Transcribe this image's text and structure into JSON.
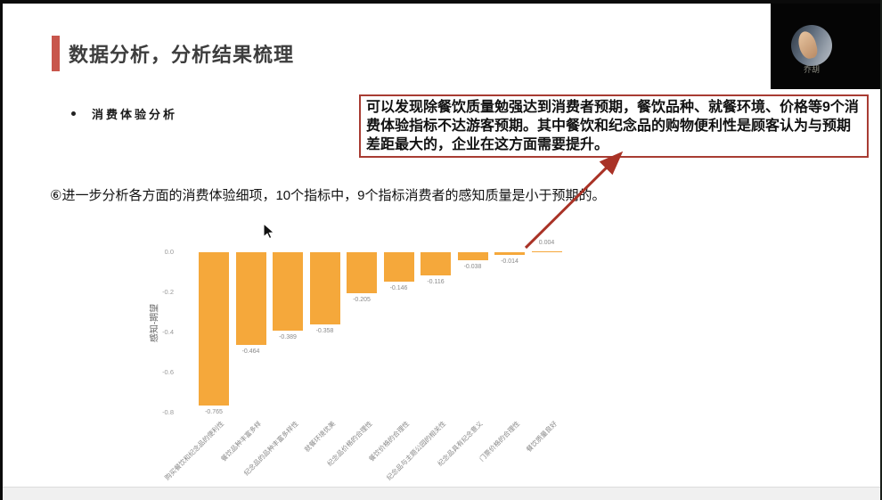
{
  "slide": {
    "title": "数据分析，分析结果梳理",
    "bullet": "消费体验分析",
    "callout": "可以发现除餐饮质量勉强达到消费者预期，餐饮品种、就餐环境、价格等9个消费体验指标不达游客预期。其中餐饮和纪念品的购物便利性是顾客认为与预期差距最大的，企业在这方面需要提升。",
    "body": "⑥进一步分析各方面的消费体验细项，10个指标中，9个指标消费者的感知质量是小于预期的。"
  },
  "webcam": {
    "participant_name": "乔胡"
  },
  "chart_data": {
    "type": "bar",
    "title": "",
    "xlabel": "",
    "ylabel": "感知-期望",
    "ylim": [
      -0.8,
      0.05
    ],
    "yticks": [
      0.0,
      -0.2,
      -0.4,
      -0.6,
      -0.8
    ],
    "grid": false,
    "legend": "none",
    "bar_color": "#F5A83B",
    "categories": [
      "购买餐饮和纪念品的便利性",
      "餐饮品种丰富多样",
      "纪念品的品种丰富多样性",
      "就餐环境优美",
      "纪念品价格的合理性",
      "餐饮价格的合理性",
      "纪念品与主题公园的相关性",
      "纪念品具有纪念意义",
      "门票价格的合理性",
      "餐饮质量良好"
    ],
    "values": [
      -0.765,
      -0.464,
      -0.389,
      -0.358,
      -0.205,
      -0.146,
      -0.116,
      -0.038,
      -0.014,
      0.004
    ]
  },
  "colors": {
    "accent_red": "#c8564c",
    "callout_border": "#a83c33",
    "arrow_red": "#a93226",
    "bar_orange": "#F5A83B"
  }
}
